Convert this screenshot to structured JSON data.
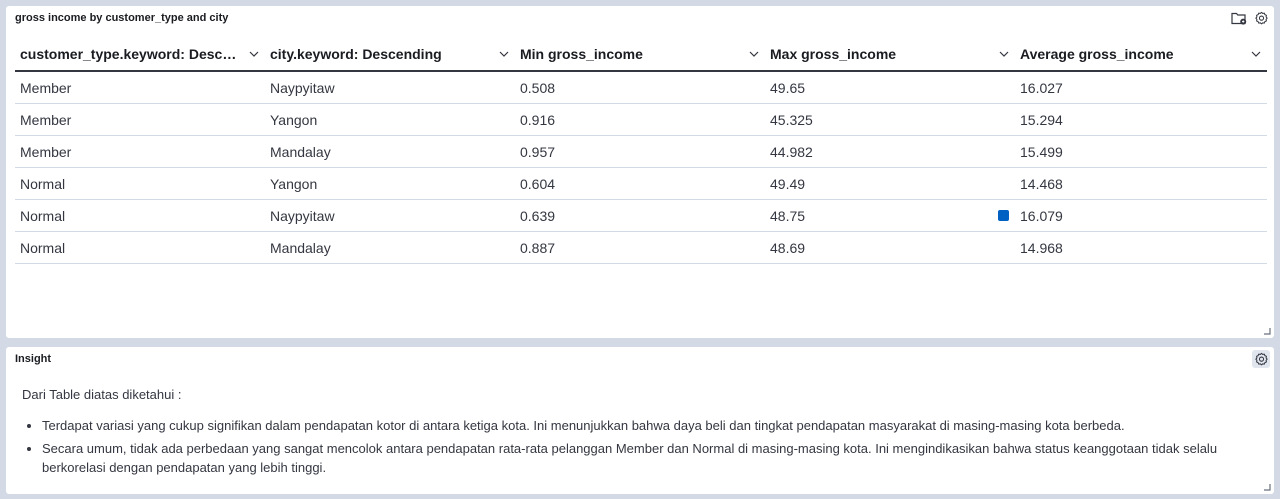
{
  "table_panel": {
    "title": "gross income by customer_type and city",
    "columns": [
      "customer_type.keyword: Descending",
      "city.keyword: Descending",
      "Min gross_income",
      "Max gross_income",
      "Average gross_income"
    ],
    "rows": [
      [
        "Member",
        "Naypyitaw",
        "0.508",
        "49.65",
        "16.027"
      ],
      [
        "Member",
        "Yangon",
        "0.916",
        "45.325",
        "15.294"
      ],
      [
        "Member",
        "Mandalay",
        "0.957",
        "44.982",
        "15.499"
      ],
      [
        "Normal",
        "Yangon",
        "0.604",
        "49.49",
        "14.468"
      ],
      [
        "Normal",
        "Naypyitaw",
        "0.639",
        "48.75",
        "16.079"
      ],
      [
        "Normal",
        "Mandalay",
        "0.887",
        "48.69",
        "14.968"
      ]
    ]
  },
  "insight_panel": {
    "title": "Insight",
    "intro": "Dari Table diatas diketahui :",
    "bullets": [
      "Terdapat variasi yang cukup signifikan dalam pendapatan kotor di antara ketiga kota. Ini menunjukkan bahwa daya beli dan tingkat pendapatan masyarakat di masing-masing kota berbeda.",
      "Secara umum, tidak ada perbedaan yang sangat mencolok antara pendapatan rata-rata pelanggan Member dan Normal di masing-masing kota. Ini mengindikasikan bahwa status keanggotaan tidak selalu berkorelasi dengan pendapatan yang lebih tinggi."
    ]
  },
  "icons": {
    "panel_folder": "folder-icon",
    "panel_settings": "gear-icon",
    "column_sort": "chevron-down-icon",
    "resize": "resize-handle-icon"
  },
  "colors": {
    "accent": "#0061c2",
    "background": "#d3dae6",
    "panel": "#ffffff"
  }
}
